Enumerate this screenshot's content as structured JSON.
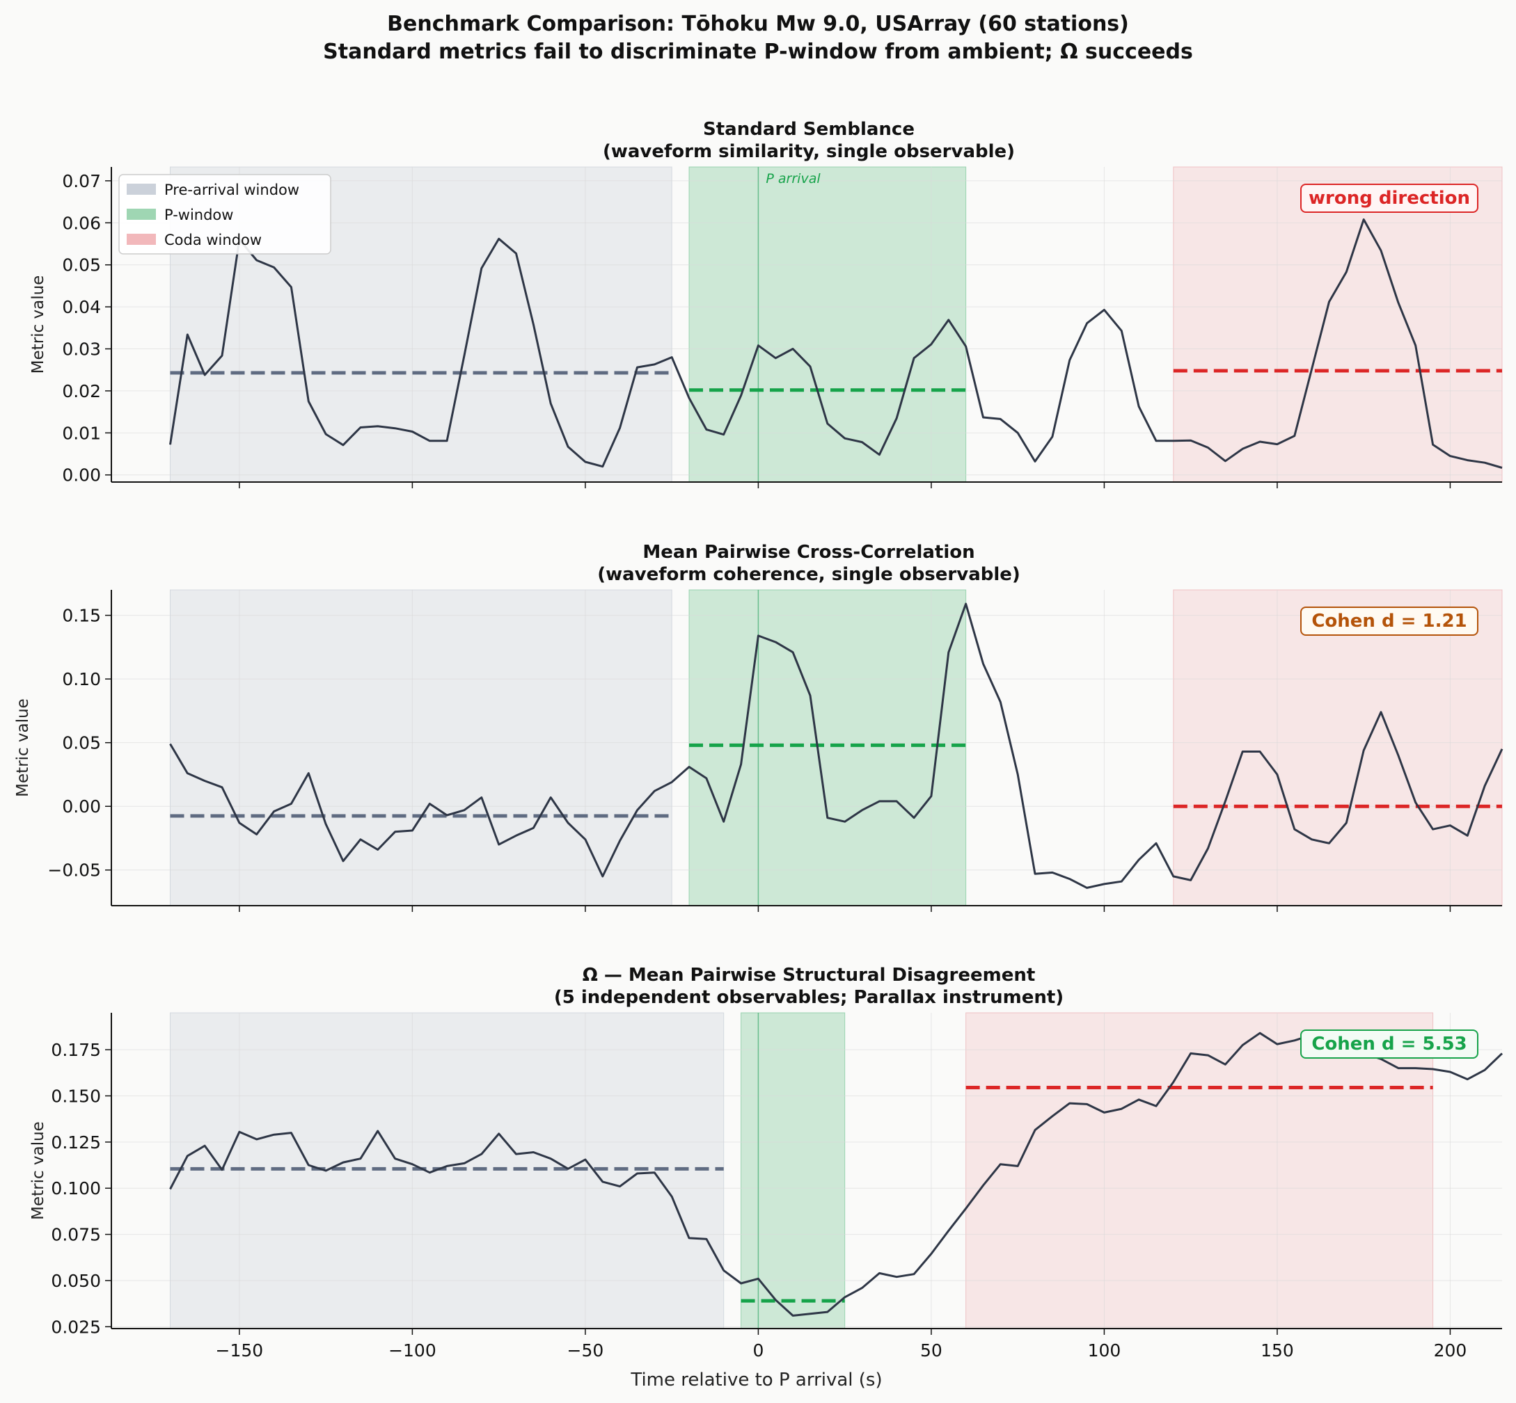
{
  "figure": {
    "title_line1": "Benchmark Comparison: Tōhoku Mw 9.0, USArray (60 stations)",
    "title_line2": "Standard metrics fail to discriminate P-window from ambient; Ω succeeds",
    "xlabel": "Time relative to P arrival (s)",
    "xlim": [
      -187,
      215
    ],
    "xticks": [
      -150,
      -100,
      -50,
      0,
      50,
      100,
      150,
      200
    ],
    "xtick_labels": [
      "−150",
      "−100",
      "−50",
      "0",
      "50",
      "100",
      "150",
      "200"
    ]
  },
  "legend": [
    {
      "label": "Pre-arrival window",
      "color": "#cbd1da"
    },
    {
      "label": "P-window",
      "color": "#9fd6b3"
    },
    {
      "label": "Coda window",
      "color": "#f2b8bb"
    }
  ],
  "colors": {
    "line": "#2e3646",
    "pre": "#5f6b81",
    "p": "#16a34a",
    "coda": "#dc2626",
    "cohen_mid": "#b45309",
    "cohen_good": "#16a34a"
  },
  "chart_data": [
    {
      "type": "line",
      "title_line1": "Standard Semblance",
      "title_line2": "(waveform similarity, single observable)",
      "ylabel": "Metric value",
      "ylim": [
        -0.0017,
        0.0733
      ],
      "yticks": [
        0.0,
        0.01,
        0.02,
        0.03,
        0.04,
        0.05,
        0.06,
        0.07
      ],
      "ytick_labels": [
        "0.00",
        "0.01",
        "0.02",
        "0.03",
        "0.04",
        "0.05",
        "0.06",
        "0.07"
      ],
      "windows": {
        "pre": [
          -170,
          -25
        ],
        "p": [
          -20,
          60
        ],
        "coda": [
          120,
          215
        ]
      },
      "means": {
        "pre": 0.0243,
        "p": 0.0202,
        "coda": 0.0248
      },
      "p_arrival_label": "P arrival",
      "badge": {
        "text": "wrong direction",
        "style": "coda"
      },
      "x": [
        -170,
        -165,
        -160,
        -155,
        -150,
        -145,
        -140,
        -135,
        -130,
        -125,
        -120,
        -115,
        -110,
        -105,
        -100,
        -95,
        -90,
        -85,
        -80,
        -75,
        -70,
        -65,
        -60,
        -55,
        -50,
        -45,
        -40,
        -35,
        -30,
        -25,
        -20,
        -15,
        -10,
        -5,
        0,
        5,
        10,
        15,
        20,
        25,
        30,
        35,
        40,
        45,
        50,
        55,
        60,
        65,
        70,
        75,
        80,
        85,
        90,
        95,
        100,
        105,
        110,
        115,
        120,
        125,
        130,
        135,
        140,
        145,
        150,
        155,
        160,
        165,
        170,
        175,
        180,
        185,
        190,
        195,
        200,
        205,
        210,
        215
      ],
      "y": [
        0.0072,
        0.0334,
        0.0238,
        0.0284,
        0.056,
        0.0511,
        0.0494,
        0.0447,
        0.0175,
        0.0097,
        0.0071,
        0.0113,
        0.0116,
        0.0111,
        0.0103,
        0.0081,
        0.0081,
        0.0284,
        0.0492,
        0.0562,
        0.0527,
        0.0358,
        0.017,
        0.0067,
        0.0031,
        0.002,
        0.0112,
        0.0256,
        0.0263,
        0.028,
        0.0183,
        0.0108,
        0.0096,
        0.0189,
        0.0308,
        0.0278,
        0.03,
        0.0258,
        0.0122,
        0.0087,
        0.0078,
        0.0048,
        0.0135,
        0.0278,
        0.0311,
        0.0369,
        0.0306,
        0.0137,
        0.0133,
        0.01,
        0.0032,
        0.0091,
        0.0273,
        0.0361,
        0.0393,
        0.0343,
        0.0163,
        0.0081,
        0.0081,
        0.0082,
        0.0065,
        0.0033,
        0.0062,
        0.0079,
        0.0073,
        0.0093,
        0.0252,
        0.0412,
        0.0483,
        0.0608,
        0.0534,
        0.041,
        0.0308,
        0.0072,
        0.0045,
        0.0035,
        0.0029,
        0.0017
      ]
    },
    {
      "type": "line",
      "title_line1": "Mean Pairwise Cross-Correlation",
      "title_line2": "(waveform coherence, single observable)",
      "ylabel": "Metric value",
      "ylim": [
        -0.078,
        0.17
      ],
      "yticks": [
        -0.05,
        0.0,
        0.05,
        0.1,
        0.15
      ],
      "ytick_labels": [
        "−0.05",
        "0.00",
        "0.05",
        "0.10",
        "0.15"
      ],
      "windows": {
        "pre": [
          -170,
          -25
        ],
        "p": [
          -20,
          60
        ],
        "coda": [
          120,
          215
        ]
      },
      "means": {
        "pre": -0.0075,
        "p": 0.048,
        "coda": 0.0
      },
      "badge": {
        "text": "Cohen d = 1.21",
        "style": "cohen_mid"
      },
      "x": [
        -170,
        -165,
        -160,
        -155,
        -150,
        -145,
        -140,
        -135,
        -130,
        -125,
        -120,
        -115,
        -110,
        -105,
        -100,
        -95,
        -90,
        -85,
        -80,
        -75,
        -70,
        -65,
        -60,
        -55,
        -50,
        -45,
        -40,
        -35,
        -30,
        -25,
        -20,
        -15,
        -10,
        -5,
        0,
        5,
        10,
        15,
        20,
        25,
        30,
        35,
        40,
        45,
        50,
        55,
        60,
        65,
        70,
        75,
        80,
        85,
        90,
        95,
        100,
        105,
        110,
        115,
        120,
        125,
        130,
        135,
        140,
        145,
        150,
        155,
        160,
        165,
        170,
        175,
        180,
        185,
        190,
        195,
        200,
        205,
        210,
        215
      ],
      "y": [
        0.049,
        0.026,
        0.02,
        0.015,
        -0.013,
        -0.022,
        -0.004,
        0.002,
        0.026,
        -0.014,
        -0.043,
        -0.026,
        -0.034,
        -0.02,
        -0.019,
        0.002,
        -0.007,
        -0.003,
        0.007,
        -0.03,
        -0.023,
        -0.017,
        0.007,
        -0.013,
        -0.026,
        -0.055,
        -0.027,
        -0.003,
        0.012,
        0.019,
        0.031,
        0.022,
        -0.012,
        0.033,
        0.134,
        0.129,
        0.121,
        0.087,
        -0.009,
        -0.012,
        -0.003,
        0.004,
        0.004,
        -0.009,
        0.008,
        0.121,
        0.159,
        0.112,
        0.082,
        0.025,
        -0.053,
        -0.052,
        -0.057,
        -0.064,
        -0.061,
        -0.059,
        -0.042,
        -0.029,
        -0.055,
        -0.058,
        -0.033,
        0.004,
        0.043,
        0.043,
        0.025,
        -0.018,
        -0.026,
        -0.029,
        -0.013,
        0.044,
        0.074,
        0.04,
        0.003,
        -0.018,
        -0.015,
        -0.023,
        0.016,
        0.045
      ]
    },
    {
      "type": "line",
      "title_line1": "Ω — Mean Pairwise Structural Disagreement",
      "title_line2": "(5 independent observables; Parallax instrument)",
      "ylabel": "Metric value",
      "ylim": [
        0.024,
        0.195
      ],
      "yticks": [
        0.025,
        0.05,
        0.075,
        0.1,
        0.125,
        0.15,
        0.175
      ],
      "ytick_labels": [
        "0.025",
        "0.050",
        "0.075",
        "0.100",
        "0.125",
        "0.150",
        "0.175"
      ],
      "windows": {
        "pre": [
          -170,
          -10
        ],
        "p": [
          -5,
          25
        ],
        "coda": [
          60,
          195
        ]
      },
      "means": {
        "pre": 0.1105,
        "p": 0.039,
        "coda": 0.1545
      },
      "badge": {
        "text": "Cohen d = 5.53",
        "style": "cohen_good"
      },
      "x": [
        -170,
        -165,
        -160,
        -155,
        -150,
        -145,
        -140,
        -135,
        -130,
        -125,
        -120,
        -115,
        -110,
        -105,
        -100,
        -95,
        -90,
        -85,
        -80,
        -75,
        -70,
        -65,
        -60,
        -55,
        -50,
        -45,
        -40,
        -35,
        -30,
        -25,
        -20,
        -15,
        -10,
        -5,
        0,
        5,
        10,
        15,
        20,
        25,
        30,
        35,
        40,
        45,
        50,
        55,
        60,
        65,
        70,
        75,
        80,
        85,
        90,
        95,
        100,
        105,
        110,
        115,
        120,
        125,
        130,
        135,
        140,
        145,
        150,
        155,
        160,
        165,
        170,
        175,
        180,
        185,
        190,
        195,
        200,
        205,
        210,
        215
      ],
      "y": [
        0.0995,
        0.1175,
        0.123,
        0.11,
        0.1305,
        0.1265,
        0.129,
        0.13,
        0.1125,
        0.1095,
        0.114,
        0.116,
        0.131,
        0.116,
        0.113,
        0.1085,
        0.112,
        0.1135,
        0.1185,
        0.1295,
        0.1185,
        0.1195,
        0.116,
        0.1105,
        0.1155,
        0.1035,
        0.101,
        0.108,
        0.1085,
        0.0955,
        0.073,
        0.0725,
        0.0555,
        0.0485,
        0.051,
        0.0395,
        0.031,
        0.032,
        0.033,
        0.041,
        0.046,
        0.054,
        0.052,
        0.0535,
        0.0645,
        0.077,
        0.089,
        0.1015,
        0.113,
        0.112,
        0.1315,
        0.139,
        0.146,
        0.1455,
        0.141,
        0.143,
        0.148,
        0.1445,
        0.1575,
        0.173,
        0.172,
        0.167,
        0.1775,
        0.184,
        0.178,
        0.18,
        0.183,
        0.178,
        0.1795,
        0.173,
        0.17,
        0.165,
        0.165,
        0.1645,
        0.163,
        0.159,
        0.164,
        0.173
      ]
    }
  ]
}
